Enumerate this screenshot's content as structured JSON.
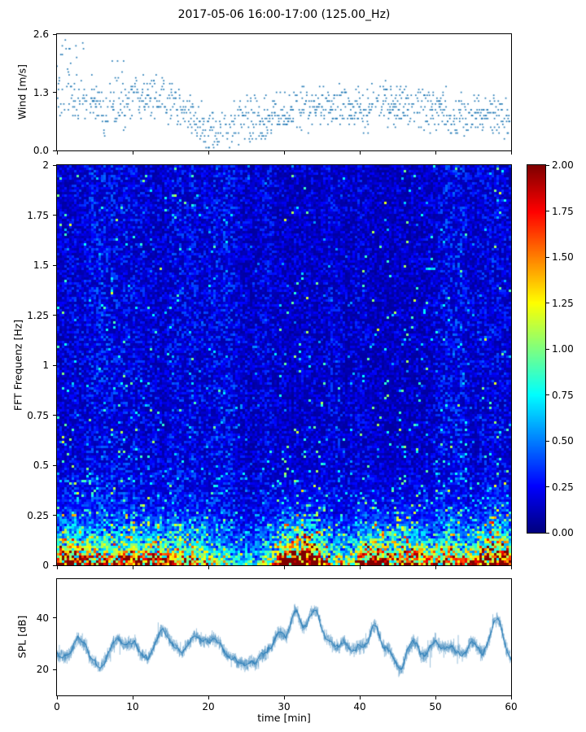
{
  "title": "2017-05-06 16:00-17:00 (125.00_Hz)",
  "xlabel": "time [min]",
  "colors": {
    "scatter": "#1f77b4",
    "line": "#1f77b4",
    "line_noise": "rgba(31,119,180,0.42)",
    "background": "#ffffff",
    "axis": "#000000"
  },
  "chart_data": [
    {
      "type": "scatter",
      "name": "wind-speed",
      "ylabel": "Wind [m/s]",
      "xlim": [
        0,
        60
      ],
      "ylim": [
        0.0,
        2.6
      ],
      "yticks": {
        "values": [
          0.0,
          1.3,
          2.6
        ],
        "labels": [
          "0.0",
          "1.3",
          "2.6"
        ]
      },
      "xticks": {
        "values": [
          0,
          10,
          20,
          30,
          40,
          50,
          60
        ],
        "labels_shown": false
      },
      "marker": "point",
      "description": "Dense quantized wind-speed samples over 60 min; bulk between 0.1 and 1.5 m/s, peaks up to 2.6 m/s near the start, values quantized in ~0.065 m/s steps"
    },
    {
      "type": "heatmap",
      "name": "fft-spectrogram",
      "ylabel": "FFT Frequenz [Hz]",
      "xlim": [
        0,
        60
      ],
      "ylim": [
        0,
        2
      ],
      "yticks": {
        "values": [
          0,
          0.25,
          0.5,
          0.75,
          1,
          1.25,
          1.5,
          1.75,
          2
        ],
        "labels": [
          "0",
          "0.25",
          "0.5",
          "0.75",
          "1",
          "1.25",
          "1.5",
          "1.75",
          "2"
        ]
      },
      "xticks": {
        "values": [
          0,
          10,
          20,
          30,
          40,
          50,
          60
        ],
        "labels_shown": false
      },
      "colormap": "jet",
      "value_range": [
        0,
        2
      ],
      "colorbar": {
        "range": [
          0,
          2
        ],
        "ticks": {
          "values": [
            0,
            0.25,
            0.5,
            0.75,
            1.0,
            1.25,
            1.5,
            1.75,
            2.0
          ],
          "labels": [
            "0.00",
            "0.25",
            "0.50",
            "0.75",
            "1.00",
            "1.25",
            "1.50",
            "1.75",
            "2.00"
          ]
        }
      },
      "description": "Spectral energy strongly concentrated below ~0.25 Hz (yellow/orange/dark-red bands near 0 Hz), cyan/green speckles up to ~0.5 Hz, mostly dark blue above 0.5 Hz with faint vertical striping; quieter interval near 23-28 min, stronger bursts near 0-2, 8-15, 30-35, 40-45 and 55-60 min"
    },
    {
      "type": "line",
      "name": "spl",
      "ylabel": "SPL [dB]",
      "xlim": [
        0,
        60
      ],
      "ylim": [
        10,
        55
      ],
      "yticks": {
        "values": [
          20,
          40
        ],
        "labels": [
          "20",
          "40"
        ]
      },
      "xticks": {
        "values": [
          0,
          10,
          20,
          30,
          40,
          50,
          60
        ],
        "labels": [
          "0",
          "10",
          "20",
          "30",
          "40",
          "50",
          "60"
        ]
      },
      "description": "Noisy sound-pressure-level trace fluctuating around 20-35 dB with dips to ~15 dB near 5 and 24-28 min and peaks to ~45-50 dB near 32, 34, 42 and 58 min"
    }
  ]
}
